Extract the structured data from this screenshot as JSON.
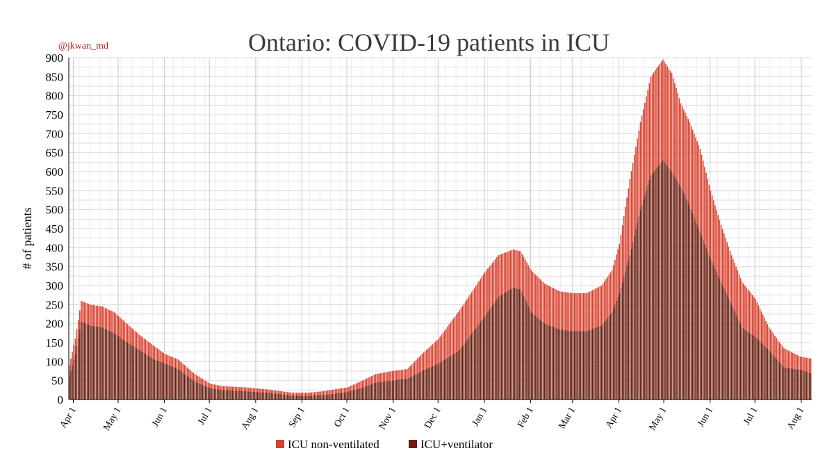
{
  "handle": "@jkwan_md",
  "chart_data": {
    "type": "bar",
    "stacked": true,
    "title": "Ontario: COVID-19 patients in ICU",
    "xlabel": "",
    "ylabel": "# of patients",
    "ylim": [
      0,
      900
    ],
    "yticks": [
      0,
      50,
      100,
      150,
      200,
      250,
      300,
      350,
      400,
      450,
      500,
      550,
      600,
      650,
      700,
      750,
      800,
      850,
      900
    ],
    "x_tick_labels": [
      "Apr 1",
      "May 1",
      "Jun 1",
      "Jul 1",
      "Aug 1",
      "Sep 1",
      "Oct 1",
      "Nov 1",
      "Dec 1",
      "Jan 1",
      "Feb 1",
      "Mar 1",
      "Apr 1",
      "May 1",
      "Jun 1",
      "Jul 1",
      "Aug 1"
    ],
    "x_tick_days": [
      0,
      30,
      61,
      91,
      122,
      153,
      183,
      214,
      244,
      275,
      306,
      334,
      365,
      395,
      426,
      456,
      487
    ],
    "date_range": [
      "2020-03-29",
      "2021-08-07"
    ],
    "grid": true,
    "legend_position": "bottom",
    "series": [
      {
        "name": "ICU+ventilator",
        "color": "#6b1f10",
        "points": [
          [
            "2020-03-29",
            60
          ],
          [
            "2020-04-02",
            120
          ],
          [
            "2020-04-06",
            205
          ],
          [
            "2020-04-12",
            195
          ],
          [
            "2020-04-20",
            190
          ],
          [
            "2020-04-28",
            175
          ],
          [
            "2020-05-05",
            155
          ],
          [
            "2020-05-15",
            130
          ],
          [
            "2020-05-25",
            105
          ],
          [
            "2020-06-01",
            95
          ],
          [
            "2020-06-10",
            80
          ],
          [
            "2020-06-20",
            50
          ],
          [
            "2020-07-01",
            30
          ],
          [
            "2020-07-10",
            25
          ],
          [
            "2020-07-25",
            22
          ],
          [
            "2020-08-10",
            18
          ],
          [
            "2020-08-25",
            10
          ],
          [
            "2020-09-05",
            10
          ],
          [
            "2020-09-15",
            12
          ],
          [
            "2020-10-01",
            20
          ],
          [
            "2020-10-10",
            30
          ],
          [
            "2020-10-20",
            45
          ],
          [
            "2020-10-31",
            50
          ],
          [
            "2020-11-10",
            55
          ],
          [
            "2020-11-20",
            75
          ],
          [
            "2020-12-01",
            95
          ],
          [
            "2020-12-15",
            130
          ],
          [
            "2021-01-01",
            220
          ],
          [
            "2021-01-10",
            270
          ],
          [
            "2021-01-20",
            295
          ],
          [
            "2021-01-25",
            290
          ],
          [
            "2021-02-01",
            230
          ],
          [
            "2021-02-10",
            200
          ],
          [
            "2021-02-20",
            185
          ],
          [
            "2021-03-01",
            180
          ],
          [
            "2021-03-10",
            180
          ],
          [
            "2021-03-20",
            195
          ],
          [
            "2021-03-27",
            230
          ],
          [
            "2021-04-01",
            280
          ],
          [
            "2021-04-08",
            380
          ],
          [
            "2021-04-15",
            500
          ],
          [
            "2021-04-22",
            590
          ],
          [
            "2021-04-30",
            630
          ],
          [
            "2021-05-06",
            600
          ],
          [
            "2021-05-12",
            560
          ],
          [
            "2021-05-18",
            510
          ],
          [
            "2021-05-25",
            440
          ],
          [
            "2021-06-01",
            370
          ],
          [
            "2021-06-08",
            310
          ],
          [
            "2021-06-15",
            250
          ],
          [
            "2021-06-22",
            190
          ],
          [
            "2021-07-01",
            165
          ],
          [
            "2021-07-10",
            130
          ],
          [
            "2021-07-20",
            85
          ],
          [
            "2021-07-31",
            78
          ],
          [
            "2021-08-07",
            70
          ]
        ]
      },
      {
        "name": "ICU non-ventilated",
        "color": "#d9412e",
        "points": [
          [
            "2020-03-29",
            30
          ],
          [
            "2020-04-02",
            40
          ],
          [
            "2020-04-06",
            55
          ],
          [
            "2020-04-12",
            55
          ],
          [
            "2020-04-20",
            55
          ],
          [
            "2020-04-28",
            55
          ],
          [
            "2020-05-05",
            50
          ],
          [
            "2020-05-15",
            40
          ],
          [
            "2020-05-25",
            35
          ],
          [
            "2020-06-01",
            25
          ],
          [
            "2020-06-10",
            25
          ],
          [
            "2020-06-20",
            20
          ],
          [
            "2020-07-01",
            12
          ],
          [
            "2020-07-10",
            10
          ],
          [
            "2020-07-25",
            10
          ],
          [
            "2020-08-10",
            8
          ],
          [
            "2020-08-25",
            8
          ],
          [
            "2020-09-05",
            8
          ],
          [
            "2020-09-15",
            10
          ],
          [
            "2020-10-01",
            12
          ],
          [
            "2020-10-10",
            18
          ],
          [
            "2020-10-20",
            22
          ],
          [
            "2020-10-31",
            25
          ],
          [
            "2020-11-10",
            25
          ],
          [
            "2020-11-20",
            45
          ],
          [
            "2020-12-01",
            65
          ],
          [
            "2020-12-15",
            105
          ],
          [
            "2021-01-01",
            115
          ],
          [
            "2021-01-10",
            110
          ],
          [
            "2021-01-20",
            100
          ],
          [
            "2021-01-25",
            100
          ],
          [
            "2021-02-01",
            110
          ],
          [
            "2021-02-10",
            105
          ],
          [
            "2021-02-20",
            100
          ],
          [
            "2021-03-01",
            100
          ],
          [
            "2021-03-10",
            100
          ],
          [
            "2021-03-20",
            105
          ],
          [
            "2021-03-27",
            110
          ],
          [
            "2021-04-01",
            130
          ],
          [
            "2021-04-08",
            200
          ],
          [
            "2021-04-15",
            230
          ],
          [
            "2021-04-22",
            260
          ],
          [
            "2021-04-30",
            265
          ],
          [
            "2021-05-06",
            260
          ],
          [
            "2021-05-12",
            220
          ],
          [
            "2021-05-18",
            220
          ],
          [
            "2021-05-25",
            220
          ],
          [
            "2021-06-01",
            180
          ],
          [
            "2021-06-08",
            150
          ],
          [
            "2021-06-15",
            130
          ],
          [
            "2021-06-22",
            120
          ],
          [
            "2021-07-01",
            100
          ],
          [
            "2021-07-10",
            60
          ],
          [
            "2021-07-20",
            50
          ],
          [
            "2021-07-31",
            35
          ],
          [
            "2021-08-07",
            38
          ]
        ]
      }
    ]
  }
}
